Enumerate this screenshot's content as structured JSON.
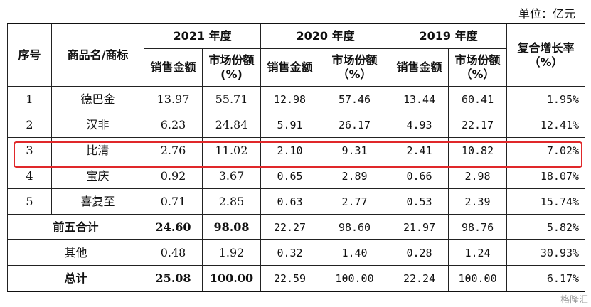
{
  "unit_label": "单位：亿元",
  "headers": {
    "seq": "序号",
    "product": "商品名/商标",
    "y2021": "2021 年度",
    "y2020": "2020 年度",
    "y2019": "2019 年度",
    "cagr": "复合增长率（%）",
    "sales": "销售金额",
    "share_2021": "市场份额(%)",
    "share_other": "市场份额（%）"
  },
  "rows": [
    {
      "seq": "1",
      "name": "德巴金",
      "s21": "13.97",
      "m21": "55.71",
      "s20": "12.98",
      "m20": "57.46",
      "s19": "13.44",
      "m19": "60.41",
      "cagr": "1.95%"
    },
    {
      "seq": "2",
      "name": "汉非",
      "s21": "6.23",
      "m21": "24.84",
      "s20": "5.91",
      "m20": "26.17",
      "s19": "4.93",
      "m19": "22.17",
      "cagr": "12.41%"
    },
    {
      "seq": "3",
      "name": "比清",
      "s21": "2.76",
      "m21": "11.02",
      "s20": "2.10",
      "m20": "9.31",
      "s19": "2.41",
      "m19": "10.82",
      "cagr": "7.02%"
    },
    {
      "seq": "4",
      "name": "宝庆",
      "s21": "0.92",
      "m21": "3.67",
      "s20": "0.65",
      "m20": "2.89",
      "s19": "0.66",
      "m19": "2.98",
      "cagr": "18.07%"
    },
    {
      "seq": "5",
      "name": "喜复至",
      "s21": "0.71",
      "m21": "2.85",
      "s20": "0.63",
      "m20": "2.77",
      "s19": "0.53",
      "m19": "2.39",
      "cagr": "15.74%"
    }
  ],
  "top5": {
    "label": "前五合计",
    "s21": "24.60",
    "m21": "98.08",
    "s20": "22.27",
    "m20": "98.60",
    "s19": "21.97",
    "m19": "98.76",
    "cagr": "5.82%"
  },
  "others": {
    "label": "其他",
    "s21": "0.48",
    "m21": "1.92",
    "s20": "0.32",
    "m20": "1.40",
    "s19": "0.28",
    "m19": "1.24",
    "cagr": "30.93%"
  },
  "total": {
    "label": "总计",
    "s21": "25.08",
    "m21": "100.00",
    "s20": "22.59",
    "m20": "100.00",
    "s19": "22.24",
    "m19": "100.00",
    "cagr": "6.17%"
  },
  "watermark": "格隆汇",
  "highlight_color": "#e0282a"
}
